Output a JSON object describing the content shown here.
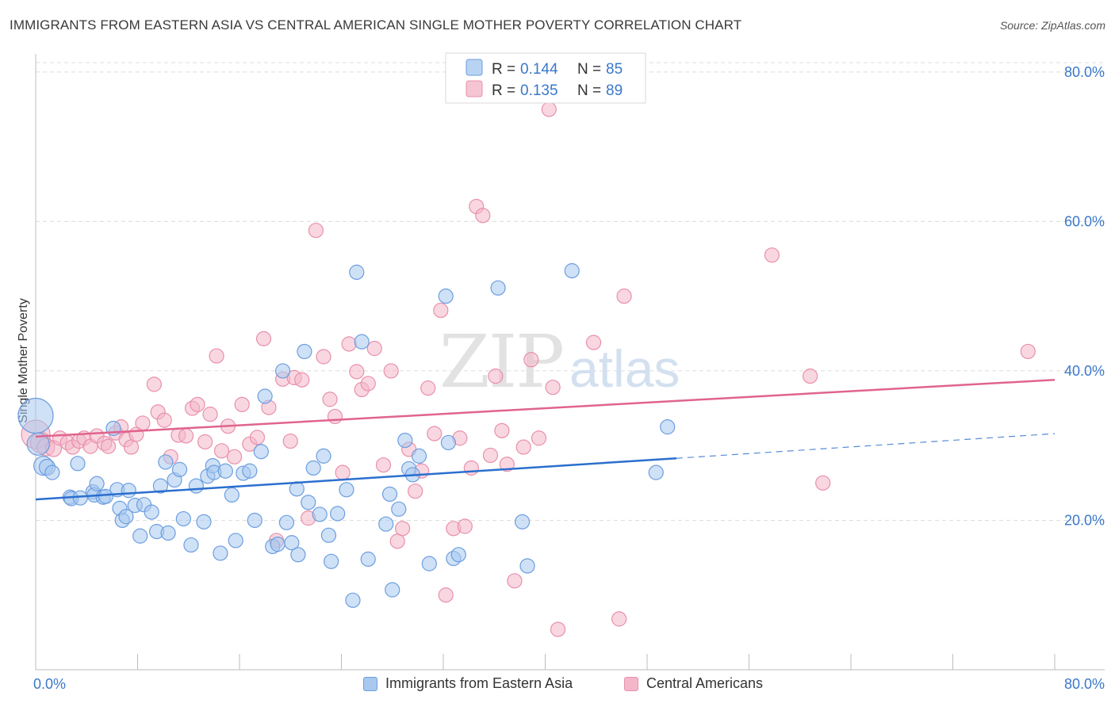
{
  "title": "IMMIGRANTS FROM EASTERN ASIA VS CENTRAL AMERICAN SINGLE MOTHER POVERTY CORRELATION CHART",
  "source": "Source: ZipAtlas.com",
  "watermark": {
    "zip": "ZIP",
    "atlas": "atlas"
  },
  "colors": {
    "blue_fill": "#a8c8ef",
    "blue_stroke": "#6c9ee0",
    "blue_line": "#2b6fce",
    "pink_fill": "#f4b7c9",
    "pink_stroke": "#e890ab",
    "pink_line": "#e0648e",
    "value_text": "#3a78c9",
    "grid": "#dcdcdc"
  },
  "legend_top": [
    {
      "r_label": "R = ",
      "r_value": "0.144",
      "n_label": "N = ",
      "n_value": "85"
    },
    {
      "r_label": "R = ",
      "r_value": "0.135",
      "n_label": "N = ",
      "n_value": "89"
    }
  ],
  "chart_data": {
    "type": "scatter",
    "ylabel": "Single Mother Poverty",
    "xlim": [
      0,
      80
    ],
    "ylim": [
      0,
      82
    ],
    "x_ticks_labels": [
      {
        "value": 0,
        "label": "0.0%"
      },
      {
        "value": 80,
        "label": "80.0%"
      }
    ],
    "y_ticks_labels": [
      {
        "value": 20,
        "label": "20.0%"
      },
      {
        "value": 40,
        "label": "40.0%"
      },
      {
        "value": 60,
        "label": "60.0%"
      },
      {
        "value": 80,
        "label": "80.0%"
      }
    ],
    "grid": true,
    "legend_placement": "bottom",
    "series": [
      {
        "name": "Immigrants from Eastern Asia",
        "color": "blue",
        "trend": {
          "x0": 0,
          "y0": 22.8,
          "x1": 50.3,
          "y1": 28.3,
          "dash_x1": 80,
          "dash_y1": 31.6
        },
        "points": [
          [
            0,
            34,
            22
          ],
          [
            0.2,
            30.2,
            14
          ],
          [
            0.6,
            27.3,
            12
          ],
          [
            0.9,
            27.1,
            10
          ],
          [
            1.3,
            26.4,
            9
          ],
          [
            2.7,
            23.1,
            9
          ],
          [
            3.3,
            27.6,
            9
          ],
          [
            2.8,
            22.9,
            9
          ],
          [
            4.5,
            23.8,
            9
          ],
          [
            4.6,
            23.4,
            9
          ],
          [
            4.8,
            24.9,
            9
          ],
          [
            5.3,
            23.1,
            9
          ],
          [
            5.5,
            23.2,
            9
          ],
          [
            6.1,
            32.3,
            9
          ],
          [
            6.4,
            24.1,
            9
          ],
          [
            6.6,
            21.6,
            9
          ],
          [
            6.8,
            20,
            9
          ],
          [
            7.1,
            20.5,
            9
          ],
          [
            7.3,
            24,
            9
          ],
          [
            7.8,
            22,
            9
          ],
          [
            8.2,
            17.9,
            9
          ],
          [
            8.5,
            22.1,
            9
          ],
          [
            9.1,
            21.1,
            9
          ],
          [
            9.5,
            18.5,
            9
          ],
          [
            9.8,
            24.6,
            9
          ],
          [
            10.2,
            27.8,
            9
          ],
          [
            10.4,
            18.3,
            9
          ],
          [
            10.9,
            25.4,
            9
          ],
          [
            11.3,
            26.8,
            9
          ],
          [
            11.6,
            20.2,
            9
          ],
          [
            12.2,
            16.7,
            9
          ],
          [
            12.6,
            24.6,
            9
          ],
          [
            13.2,
            19.8,
            9
          ],
          [
            13.5,
            25.9,
            9
          ],
          [
            13.9,
            27.3,
            9
          ],
          [
            14,
            26.4,
            9
          ],
          [
            14.5,
            15.6,
            9
          ],
          [
            14.9,
            26.6,
            9
          ],
          [
            15.4,
            23.4,
            9
          ],
          [
            15.7,
            17.3,
            9
          ],
          [
            16.3,
            26.3,
            9
          ],
          [
            16.8,
            26.6,
            9
          ],
          [
            17.2,
            20,
            9
          ],
          [
            17.7,
            29.2,
            9
          ],
          [
            18,
            36.6,
            9
          ],
          [
            18.6,
            16.5,
            9
          ],
          [
            19,
            16.8,
            9
          ],
          [
            19.4,
            40,
            9
          ],
          [
            19.7,
            19.7,
            9
          ],
          [
            20.1,
            17,
            9
          ],
          [
            20.5,
            24.2,
            9
          ],
          [
            20.6,
            15.4,
            9
          ],
          [
            21.1,
            42.6,
            9
          ],
          [
            21.4,
            22.4,
            9
          ],
          [
            21.8,
            27,
            9
          ],
          [
            22.3,
            20.8,
            9
          ],
          [
            22.6,
            28.6,
            9
          ],
          [
            23,
            18,
            9
          ],
          [
            23.2,
            14.5,
            9
          ],
          [
            23.7,
            20.9,
            9
          ],
          [
            24.4,
            24.1,
            9
          ],
          [
            24.9,
            9.3,
            9
          ],
          [
            25.2,
            53.2,
            9
          ],
          [
            25.6,
            43.9,
            9
          ],
          [
            26.1,
            14.8,
            9
          ],
          [
            27.5,
            19.5,
            9
          ],
          [
            27.8,
            23.5,
            9
          ],
          [
            28,
            10.7,
            9
          ],
          [
            28.5,
            21.5,
            9
          ],
          [
            29,
            30.7,
            9
          ],
          [
            29.3,
            26.9,
            9
          ],
          [
            29.6,
            26.1,
            9
          ],
          [
            30.1,
            28.6,
            9
          ],
          [
            30.9,
            14.2,
            9
          ],
          [
            32.2,
            50,
            9
          ],
          [
            32.4,
            30.4,
            9
          ],
          [
            32.8,
            14.9,
            9
          ],
          [
            33.2,
            15.4,
            9
          ],
          [
            36.3,
            51.1,
            9
          ],
          [
            38.2,
            19.8,
            9
          ],
          [
            38.6,
            13.9,
            9
          ],
          [
            42.1,
            53.4,
            9
          ],
          [
            48.7,
            26.4,
            9
          ],
          [
            49.6,
            32.5,
            9
          ],
          [
            3.5,
            23,
            9
          ]
        ]
      },
      {
        "name": "Central Americans",
        "color": "pink",
        "trend": {
          "x0": 0,
          "y0": 31.2,
          "x1": 80,
          "y1": 38.8
        },
        "points": [
          [
            0,
            31.5,
            18
          ],
          [
            0.4,
            30.4,
            13
          ],
          [
            0.8,
            29.8,
            11
          ],
          [
            1.4,
            29.6,
            10
          ],
          [
            1.9,
            31,
            9
          ],
          [
            2.5,
            30.4,
            9
          ],
          [
            2.9,
            29.8,
            9
          ],
          [
            3.4,
            30.6,
            9
          ],
          [
            3.8,
            31,
            9
          ],
          [
            4.3,
            29.9,
            9
          ],
          [
            4.8,
            31.3,
            9
          ],
          [
            5.4,
            30.3,
            9
          ],
          [
            5.7,
            29.9,
            9
          ],
          [
            6.3,
            31.7,
            9
          ],
          [
            6.7,
            32.5,
            9
          ],
          [
            7.1,
            30.8,
            9
          ],
          [
            7.5,
            29.8,
            9
          ],
          [
            7.9,
            31.5,
            9
          ],
          [
            8.4,
            33,
            9
          ],
          [
            9.3,
            38.2,
            9
          ],
          [
            9.6,
            34.5,
            9
          ],
          [
            10.1,
            33.4,
            9
          ],
          [
            10.6,
            28.5,
            9
          ],
          [
            11.2,
            31.4,
            9
          ],
          [
            11.8,
            31.3,
            9
          ],
          [
            12.3,
            35,
            9
          ],
          [
            12.7,
            35.5,
            9
          ],
          [
            13.3,
            30.5,
            9
          ],
          [
            13.7,
            34.2,
            9
          ],
          [
            14.2,
            42,
            9
          ],
          [
            14.6,
            29.3,
            9
          ],
          [
            15.1,
            32.6,
            9
          ],
          [
            15.6,
            28.5,
            9
          ],
          [
            16.2,
            35.5,
            9
          ],
          [
            16.8,
            30.2,
            9
          ],
          [
            17.4,
            31.1,
            9
          ],
          [
            17.9,
            44.3,
            9
          ],
          [
            18.3,
            35.1,
            9
          ],
          [
            18.9,
            17.3,
            9
          ],
          [
            19.4,
            38.9,
            9
          ],
          [
            20,
            30.6,
            9
          ],
          [
            20.3,
            39.1,
            9
          ],
          [
            20.9,
            38.8,
            9
          ],
          [
            21.4,
            20.3,
            9
          ],
          [
            22,
            58.8,
            9
          ],
          [
            22.6,
            41.9,
            9
          ],
          [
            23.1,
            36.2,
            9
          ],
          [
            23.5,
            33.9,
            9
          ],
          [
            24.1,
            26.4,
            9
          ],
          [
            24.6,
            43.6,
            9
          ],
          [
            25.2,
            39.9,
            9
          ],
          [
            25.6,
            37.5,
            9
          ],
          [
            26.1,
            38.3,
            9
          ],
          [
            26.6,
            43,
            9
          ],
          [
            27.3,
            27.4,
            9
          ],
          [
            27.9,
            40,
            9
          ],
          [
            28.4,
            17.2,
            9
          ],
          [
            28.8,
            18.9,
            9
          ],
          [
            29.3,
            29.5,
            9
          ],
          [
            29.8,
            23.9,
            9
          ],
          [
            30.3,
            26.6,
            9
          ],
          [
            30.8,
            37.7,
            9
          ],
          [
            31.3,
            31.6,
            9
          ],
          [
            31.8,
            48.1,
            9
          ],
          [
            32.2,
            10,
            9
          ],
          [
            32.8,
            18.9,
            9
          ],
          [
            33.3,
            31,
            9
          ],
          [
            33.7,
            19.2,
            9
          ],
          [
            34.2,
            27,
            9
          ],
          [
            34.6,
            62,
            9
          ],
          [
            35.1,
            60.8,
            9
          ],
          [
            35.7,
            28.7,
            9
          ],
          [
            36.1,
            39.3,
            9
          ],
          [
            36.6,
            32,
            9
          ],
          [
            37,
            27.5,
            9
          ],
          [
            37.6,
            11.9,
            9
          ],
          [
            38.3,
            29.8,
            9
          ],
          [
            38.9,
            41.5,
            9
          ],
          [
            39.5,
            31,
            9
          ],
          [
            40.3,
            75,
            9
          ],
          [
            41,
            5.4,
            9
          ],
          [
            43.8,
            43.8,
            9
          ],
          [
            45.8,
            6.8,
            9
          ],
          [
            46.2,
            50,
            9
          ],
          [
            57.8,
            55.5,
            9
          ],
          [
            60.8,
            39.3,
            9
          ],
          [
            61.8,
            25,
            9
          ],
          [
            77.9,
            42.6,
            9
          ],
          [
            40.6,
            37.8,
            9
          ]
        ]
      }
    ]
  }
}
